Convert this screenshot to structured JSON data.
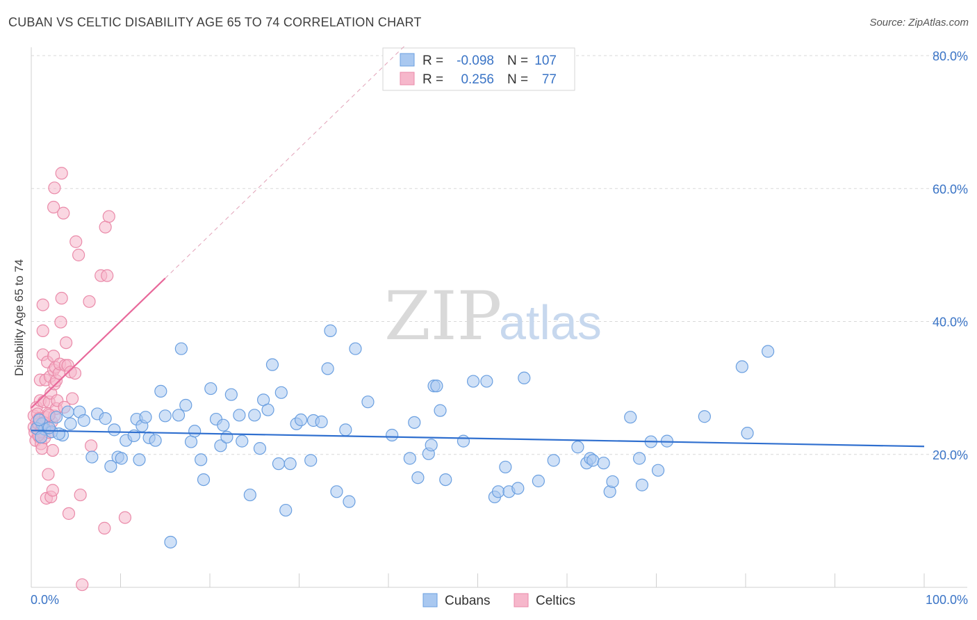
{
  "header": {
    "title": "CUBAN VS CELTIC DISABILITY AGE 65 TO 74 CORRELATION CHART",
    "source": "Source: ZipAtlas.com"
  },
  "legend_top": {
    "rows": [
      {
        "r_label": "R =",
        "r_value": "-0.098",
        "n_label": "N =",
        "n_value": "107"
      },
      {
        "r_label": "R =",
        "r_value": "0.256",
        "n_label": "N =",
        "n_value": "77"
      }
    ]
  },
  "legend_bottom": {
    "items": [
      "Cubans",
      "Celtics"
    ]
  },
  "watermark": {
    "zip": "ZIP",
    "atlas": "atlas"
  },
  "colors": {
    "cubans_fill": "#a9c8f0",
    "cubans_stroke": "#6a9fe0",
    "cubans_line": "#2f6fcf",
    "celtics_fill": "#f6b7cb",
    "celtics_stroke": "#ea8aa9",
    "celtics_line": "#e8689a",
    "grid": "#d8d8d8",
    "tick_text": "#3a74c6"
  },
  "chart_data": {
    "type": "scatter",
    "title": "CUBAN VS CELTIC DISABILITY AGE 65 TO 74 CORRELATION CHART",
    "xlabel": "",
    "ylabel": "Disability Age 65 to 74",
    "xlim": [
      0,
      100
    ],
    "ylim": [
      0,
      80
    ],
    "x_ticks": [
      "0.0%",
      "100.0%"
    ],
    "y_ticks": [
      {
        "value": 20,
        "label": "20.0%"
      },
      {
        "value": 40,
        "label": "40.0%"
      },
      {
        "value": 60,
        "label": "60.0%"
      },
      {
        "value": 80,
        "label": "80.0%"
      }
    ],
    "series": [
      {
        "name": "Cubans",
        "r": -0.098,
        "n": 107,
        "trend": {
          "x0": 0,
          "y0": 23.6,
          "x1": 100,
          "y1": 21.2
        },
        "points": [
          [
            1.2,
            24.6
          ],
          [
            1.5,
            23.8
          ],
          [
            2.3,
            23.4
          ],
          [
            2.8,
            25.6
          ],
          [
            3.5,
            22.9
          ],
          [
            4.1,
            26.4
          ],
          [
            4.4,
            24.6
          ],
          [
            5.4,
            26.4
          ],
          [
            5.9,
            25.1
          ],
          [
            6.8,
            19.6
          ],
          [
            7.4,
            26.1
          ],
          [
            8.3,
            25.4
          ],
          [
            8.9,
            18.2
          ],
          [
            9.7,
            19.6
          ],
          [
            10.1,
            19.4
          ],
          [
            10.6,
            22.1
          ],
          [
            11.5,
            22.8
          ],
          [
            11.8,
            25.3
          ],
          [
            12.1,
            19.2
          ],
          [
            12.4,
            24.3
          ],
          [
            12.8,
            25.6
          ],
          [
            13.2,
            22.5
          ],
          [
            13.9,
            22.1
          ],
          [
            14.5,
            29.5
          ],
          [
            15.0,
            25.8
          ],
          [
            15.6,
            6.8
          ],
          [
            16.5,
            25.9
          ],
          [
            16.8,
            35.9
          ],
          [
            17.3,
            27.4
          ],
          [
            17.9,
            21.9
          ],
          [
            18.3,
            23.5
          ],
          [
            19.0,
            19.2
          ],
          [
            19.3,
            16.2
          ],
          [
            20.1,
            29.9
          ],
          [
            20.7,
            25.3
          ],
          [
            21.2,
            21.3
          ],
          [
            21.5,
            24.4
          ],
          [
            21.9,
            22.6
          ],
          [
            22.4,
            29.0
          ],
          [
            23.3,
            25.9
          ],
          [
            23.6,
            22.0
          ],
          [
            24.5,
            13.9
          ],
          [
            25.0,
            25.9
          ],
          [
            25.6,
            20.9
          ],
          [
            26.0,
            28.2
          ],
          [
            26.5,
            26.7
          ],
          [
            27.0,
            33.5
          ],
          [
            27.7,
            18.6
          ],
          [
            28.0,
            29.3
          ],
          [
            28.5,
            11.6
          ],
          [
            29.0,
            18.6
          ],
          [
            29.7,
            24.6
          ],
          [
            30.2,
            25.2
          ],
          [
            31.3,
            19.1
          ],
          [
            31.6,
            25.1
          ],
          [
            32.5,
            24.9
          ],
          [
            33.5,
            38.6
          ],
          [
            33.2,
            32.9
          ],
          [
            34.2,
            14.4
          ],
          [
            35.2,
            23.7
          ],
          [
            35.6,
            12.9
          ],
          [
            36.3,
            35.9
          ],
          [
            37.7,
            27.9
          ],
          [
            40.4,
            22.9
          ],
          [
            42.4,
            19.4
          ],
          [
            42.9,
            24.8
          ],
          [
            43.3,
            16.5
          ],
          [
            44.5,
            20.1
          ],
          [
            44.8,
            21.4
          ],
          [
            45.1,
            30.3
          ],
          [
            45.4,
            30.3
          ],
          [
            45.8,
            26.6
          ],
          [
            46.4,
            16.2
          ],
          [
            48.4,
            22.0
          ],
          [
            49.5,
            31.0
          ],
          [
            51.0,
            31.0
          ],
          [
            51.9,
            13.6
          ],
          [
            52.3,
            14.4
          ],
          [
            53.1,
            18.1
          ],
          [
            53.5,
            14.4
          ],
          [
            54.5,
            14.9
          ],
          [
            55.2,
            31.5
          ],
          [
            56.8,
            16.0
          ],
          [
            58.5,
            19.1
          ],
          [
            61.2,
            21.1
          ],
          [
            62.2,
            18.7
          ],
          [
            62.6,
            19.4
          ],
          [
            62.9,
            19.1
          ],
          [
            64.1,
            18.7
          ],
          [
            64.8,
            14.4
          ],
          [
            65.1,
            15.9
          ],
          [
            67.1,
            25.6
          ],
          [
            68.1,
            19.4
          ],
          [
            68.4,
            15.4
          ],
          [
            69.4,
            21.9
          ],
          [
            70.2,
            17.6
          ],
          [
            71.2,
            22.0
          ],
          [
            75.4,
            25.7
          ],
          [
            79.6,
            33.2
          ],
          [
            80.2,
            23.2
          ],
          [
            82.5,
            35.5
          ],
          [
            0.6,
            23.9
          ],
          [
            0.9,
            25.2
          ],
          [
            1.1,
            22.6
          ],
          [
            2.0,
            24.0
          ],
          [
            3.1,
            23.1
          ],
          [
            9.3,
            23.7
          ]
        ]
      },
      {
        "name": "Celtics",
        "r": 0.256,
        "n": 77,
        "trend": {
          "x0": 0,
          "y0": 27.0,
          "x1": 15,
          "y1": 46.5
        },
        "trend_extended": {
          "x0": 15,
          "y0": 46.5,
          "x1": 42,
          "y1": 81.7
        },
        "points": [
          [
            0.3,
            24.1
          ],
          [
            0.3,
            25.8
          ],
          [
            0.4,
            23.3
          ],
          [
            0.5,
            22.1
          ],
          [
            0.6,
            24.9
          ],
          [
            0.6,
            27.1
          ],
          [
            0.7,
            26.1
          ],
          [
            0.7,
            23.8
          ],
          [
            0.8,
            24.6
          ],
          [
            0.9,
            25.4
          ],
          [
            0.9,
            22.6
          ],
          [
            1.0,
            28.1
          ],
          [
            1.0,
            31.2
          ],
          [
            1.1,
            23.6
          ],
          [
            1.1,
            21.6
          ],
          [
            1.2,
            24.3
          ],
          [
            1.2,
            20.9
          ],
          [
            1.3,
            35.0
          ],
          [
            1.3,
            38.6
          ],
          [
            1.3,
            42.5
          ],
          [
            1.4,
            27.9
          ],
          [
            1.5,
            22.5
          ],
          [
            1.6,
            25.6
          ],
          [
            1.6,
            31.2
          ],
          [
            1.7,
            13.4
          ],
          [
            1.8,
            24.0
          ],
          [
            1.8,
            33.9
          ],
          [
            1.9,
            17.0
          ],
          [
            1.9,
            26.1
          ],
          [
            2.0,
            23.3
          ],
          [
            2.0,
            27.9
          ],
          [
            2.1,
            31.7
          ],
          [
            2.2,
            29.2
          ],
          [
            2.2,
            13.6
          ],
          [
            2.3,
            24.9
          ],
          [
            2.4,
            20.6
          ],
          [
            2.4,
            14.6
          ],
          [
            2.5,
            32.7
          ],
          [
            2.5,
            34.8
          ],
          [
            2.5,
            57.2
          ],
          [
            2.6,
            30.6
          ],
          [
            2.6,
            25.8
          ],
          [
            2.6,
            60.1
          ],
          [
            2.7,
            33.1
          ],
          [
            2.8,
            26.9
          ],
          [
            2.8,
            31.1
          ],
          [
            2.9,
            28.1
          ],
          [
            3.1,
            32.2
          ],
          [
            3.2,
            33.6
          ],
          [
            3.3,
            39.9
          ],
          [
            3.4,
            43.5
          ],
          [
            3.4,
            62.3
          ],
          [
            3.6,
            56.3
          ],
          [
            3.7,
            27.1
          ],
          [
            3.8,
            33.4
          ],
          [
            3.9,
            36.8
          ],
          [
            4.1,
            33.4
          ],
          [
            4.2,
            11.1
          ],
          [
            4.4,
            32.4
          ],
          [
            4.6,
            28.4
          ],
          [
            4.9,
            32.2
          ],
          [
            5.0,
            52.0
          ],
          [
            5.3,
            50.0
          ],
          [
            5.5,
            13.9
          ],
          [
            6.5,
            43.0
          ],
          [
            6.7,
            21.3
          ],
          [
            7.8,
            46.9
          ],
          [
            8.2,
            8.9
          ],
          [
            8.3,
            54.2
          ],
          [
            8.5,
            46.9
          ],
          [
            8.7,
            55.8
          ],
          [
            10.5,
            10.5
          ],
          [
            5.7,
            0.4
          ],
          [
            1.1,
            23.4
          ],
          [
            0.8,
            22.9
          ],
          [
            1.4,
            24.8
          ],
          [
            2.0,
            25.9
          ]
        ]
      }
    ]
  }
}
